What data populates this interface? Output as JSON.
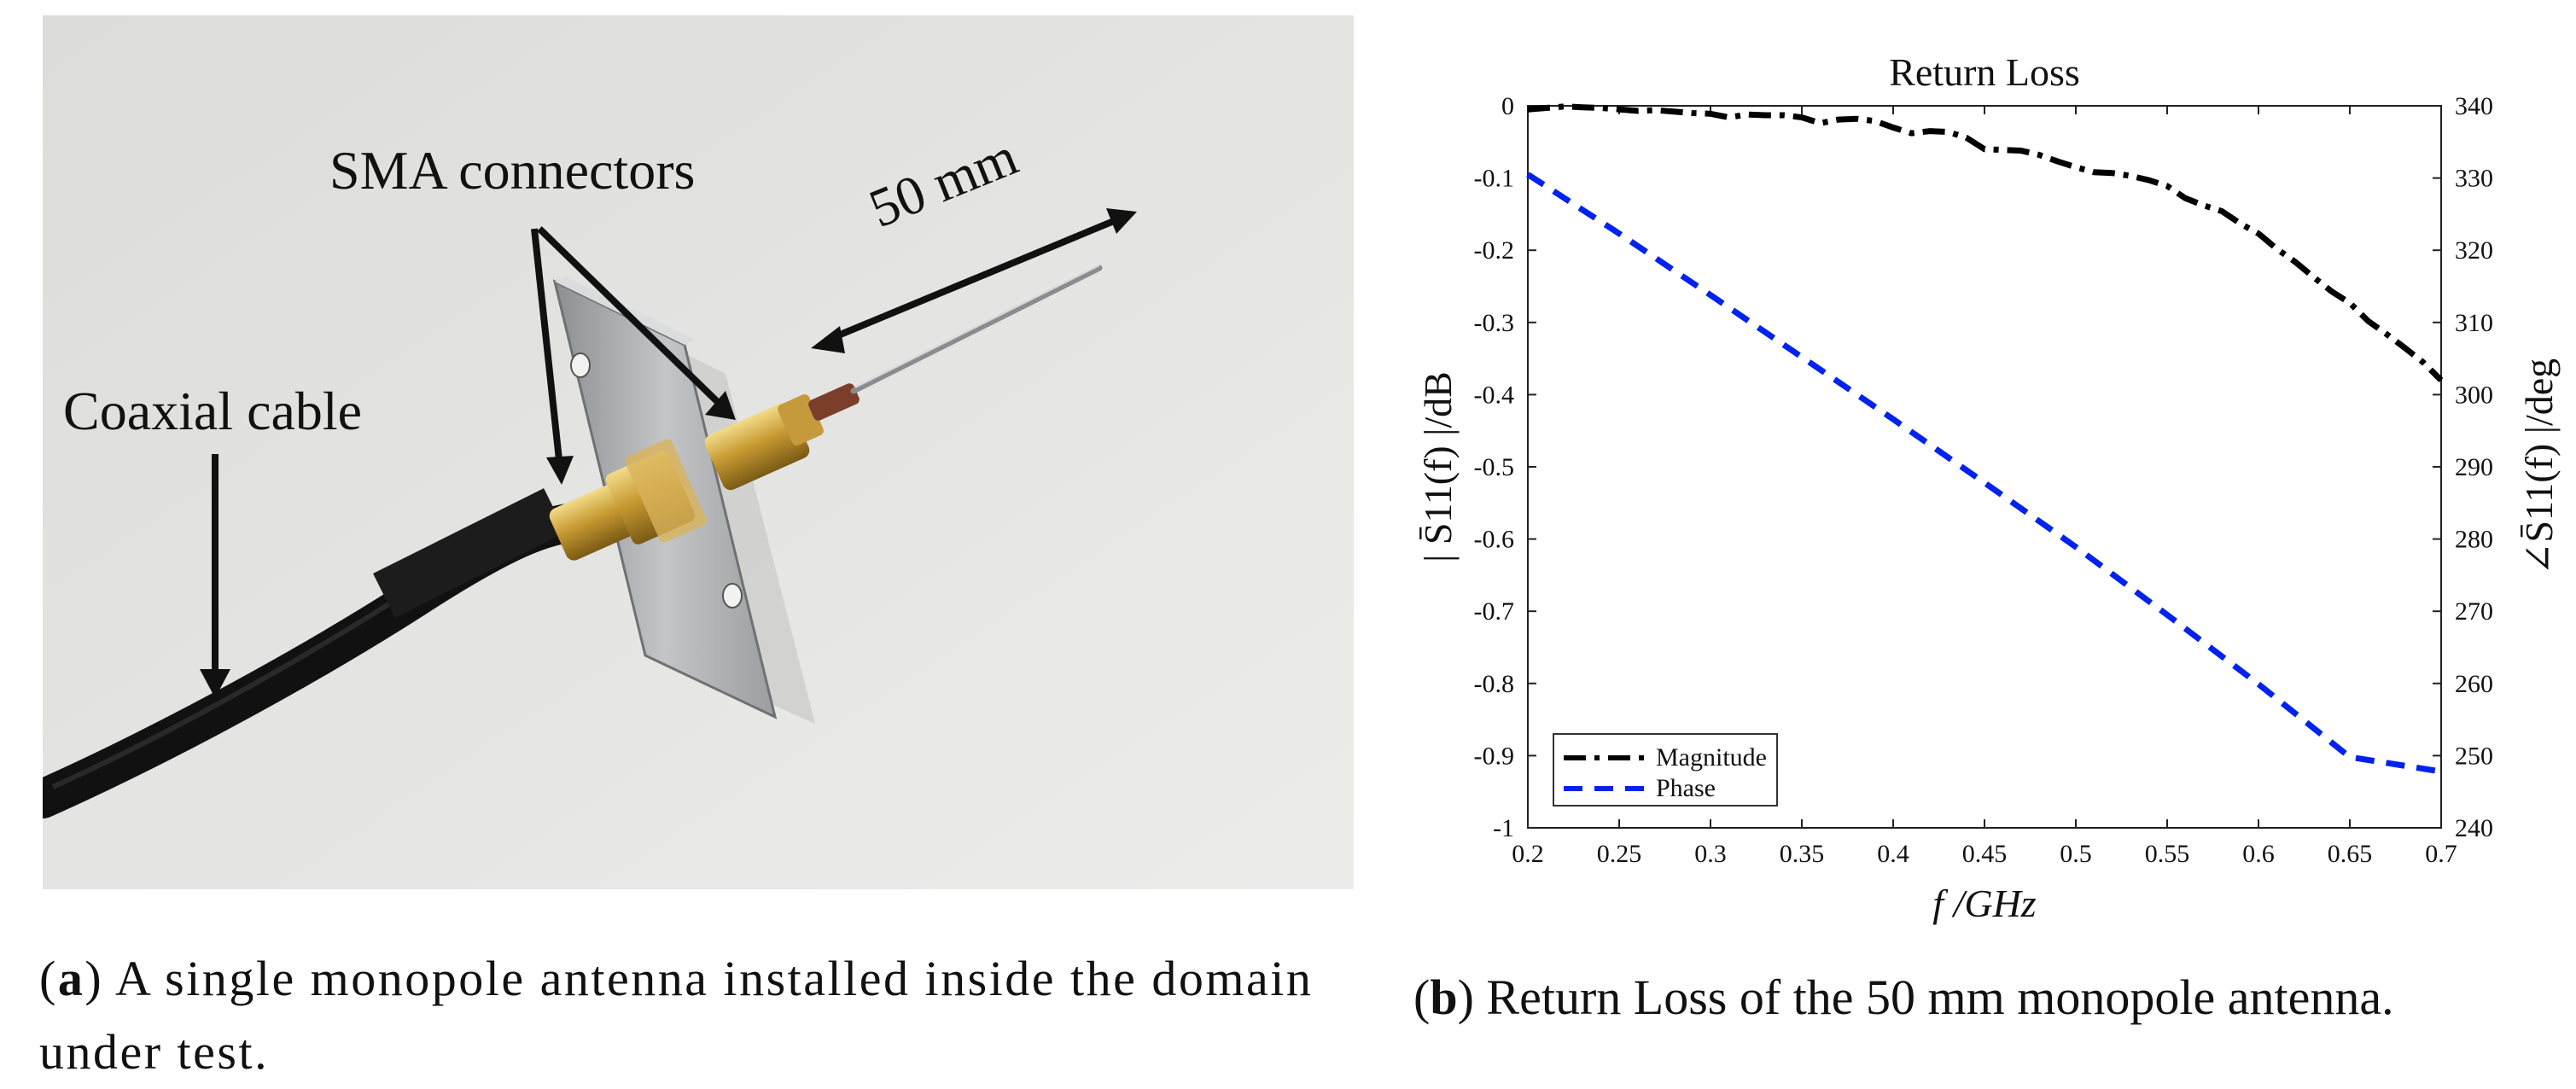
{
  "figure": {
    "panel_a": {
      "labels": {
        "sma": "SMA connectors",
        "coax": "Coaxial cable",
        "length": "50 mm"
      },
      "caption": {
        "tag": "a",
        "text": "A single monopole antenna installed inside the domain under test."
      }
    },
    "panel_b": {
      "caption": {
        "tag": "b",
        "text": "Return Loss of the 50 mm monopole antenna."
      }
    }
  },
  "chart_data": {
    "type": "line",
    "title": "Return Loss",
    "xlabel": "f /GHz",
    "ylabel": "| S̄11(f) |/dB",
    "ylabel_right": "∠S̄11(f) |/deg",
    "xlim": [
      0.2,
      0.7
    ],
    "ylim": [
      -1,
      0
    ],
    "ylim_right": [
      240,
      340
    ],
    "x_ticks": [
      "0.2",
      "0.25",
      "0.3",
      "0.35",
      "0.4",
      "0.45",
      "0.5",
      "0.55",
      "0.6",
      "0.65",
      "0.7"
    ],
    "y_ticks": [
      "0",
      "-0.1",
      "-0.2",
      "-0.3",
      "-0.4",
      "-0.5",
      "-0.6",
      "-0.7",
      "-0.8",
      "-0.9",
      "-1"
    ],
    "y_ticks_right": [
      "340",
      "330",
      "320",
      "310",
      "300",
      "290",
      "280",
      "270",
      "260",
      "250",
      "240"
    ],
    "legend_position": "bottom-left",
    "series": [
      {
        "name": "Magnitude",
        "axis": "left",
        "color": "#000000",
        "style": "dashdot",
        "x": [
          0.2,
          0.21,
          0.22,
          0.23,
          0.24,
          0.25,
          0.26,
          0.27,
          0.28,
          0.29,
          0.3,
          0.31,
          0.32,
          0.33,
          0.34,
          0.35,
          0.36,
          0.37,
          0.38,
          0.39,
          0.4,
          0.41,
          0.42,
          0.43,
          0.44,
          0.45,
          0.46,
          0.47,
          0.48,
          0.49,
          0.5,
          0.51,
          0.52,
          0.53,
          0.54,
          0.55,
          0.56,
          0.57,
          0.58,
          0.59,
          0.6,
          0.61,
          0.62,
          0.63,
          0.64,
          0.65,
          0.66,
          0.67,
          0.68,
          0.69,
          0.7
        ],
        "values": [
          -0.005,
          -0.003,
          -0.001,
          -0.002,
          -0.003,
          -0.005,
          -0.007,
          -0.006,
          -0.008,
          -0.01,
          -0.011,
          -0.016,
          -0.012,
          -0.013,
          -0.013,
          -0.016,
          -0.024,
          -0.019,
          -0.018,
          -0.021,
          -0.03,
          -0.038,
          -0.035,
          -0.036,
          -0.044,
          -0.06,
          -0.061,
          -0.062,
          -0.068,
          -0.077,
          -0.085,
          -0.092,
          -0.093,
          -0.097,
          -0.103,
          -0.111,
          -0.128,
          -0.138,
          -0.146,
          -0.163,
          -0.177,
          -0.198,
          -0.216,
          -0.237,
          -0.257,
          -0.273,
          -0.298,
          -0.316,
          -0.335,
          -0.355,
          -0.38
        ]
      },
      {
        "name": "Phase",
        "axis": "right",
        "color": "#0022ee",
        "style": "dashed",
        "x": [
          0.2,
          0.25,
          0.3,
          0.35,
          0.4,
          0.45,
          0.5,
          0.55,
          0.6,
          0.65,
          0.7
        ],
        "values": [
          330.5,
          322.3,
          313.8,
          305.2,
          296.6,
          287.8,
          278.9,
          269.5,
          259.9,
          249.8,
          247.8
        ]
      }
    ]
  }
}
